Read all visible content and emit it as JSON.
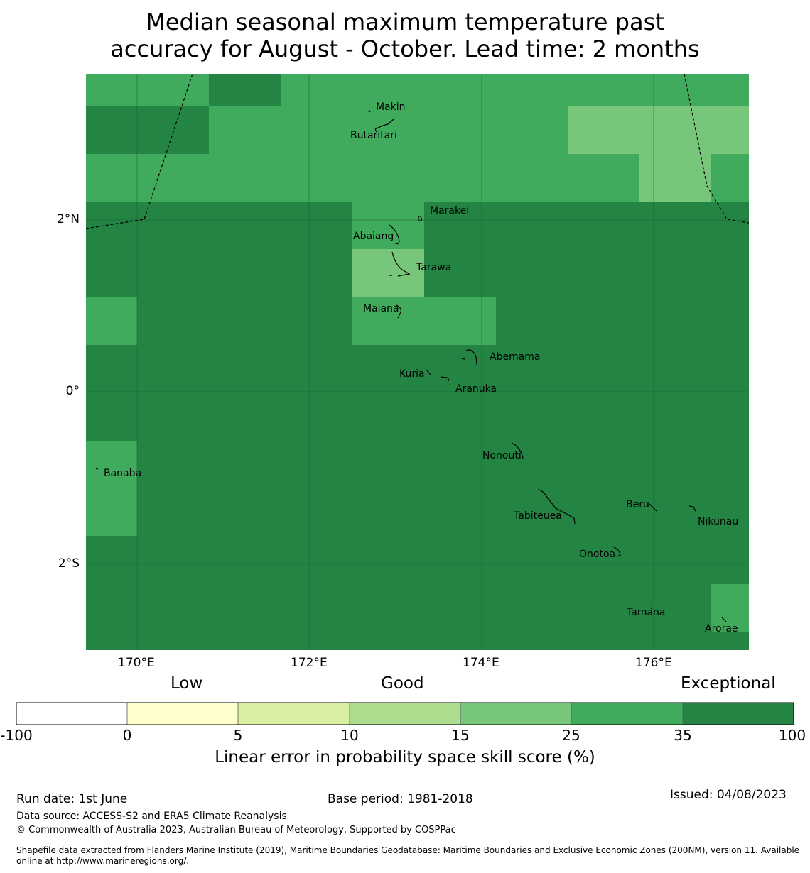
{
  "title": {
    "line1": "Median seasonal maximum temperature past",
    "line2": "accuracy for August - October. Lead time: 2 months"
  },
  "map": {
    "lat_ticks": [
      "2°N",
      "0°",
      "2°S"
    ],
    "lon_ticks": [
      "170°E",
      "172°E",
      "174°E",
      "176°E"
    ],
    "places": [
      "Makin",
      "Butaritari",
      "Marakei",
      "Abaiang",
      "Tarawa",
      "Maiana",
      "Abemama",
      "Kuria",
      "Aranuka",
      "Nonouti",
      "Banaba",
      "Beru",
      "Tabiteuea",
      "Nikunau",
      "Onotoa",
      "Tamana",
      "Arorae"
    ],
    "colors": {
      "exceptional_35_100": "#238443",
      "good_25_35": "#41ab5d",
      "good_15_25": "#78c679"
    },
    "skill_grid_rows": [
      "region north of 2.4°N: mostly 25-35 with 35-100 patches and 15-25 area near 176-177°E",
      "region south of 2.4°N: mostly 35-100 with 15-35 patches near Tarawa, Maiana and Banaba"
    ]
  },
  "colorbar": {
    "categories": [
      "Low",
      "Good",
      "Exceptional"
    ],
    "ticks": [
      "-100",
      "0",
      "5",
      "10",
      "15",
      "25",
      "35",
      "100"
    ],
    "bins": [
      {
        "from": "-100",
        "to": "0",
        "color": "#ffffff"
      },
      {
        "from": "0",
        "to": "5",
        "color": "#ffffcc"
      },
      {
        "from": "5",
        "to": "10",
        "color": "#d9f0a3"
      },
      {
        "from": "10",
        "to": "15",
        "color": "#addd8e"
      },
      {
        "from": "15",
        "to": "25",
        "color": "#78c679"
      },
      {
        "from": "25",
        "to": "35",
        "color": "#41ab5d"
      },
      {
        "from": "35",
        "to": "100",
        "color": "#238443"
      }
    ],
    "label": "Linear error in probability space skill score (%)"
  },
  "footer": {
    "run_date": "Run date: 1st June",
    "base_period": "Base period: 1981-2018",
    "issued": "Issued: 04/08/2023",
    "data_source": "Data source: ACCESS-S2 and ERA5 Climate Reanalysis",
    "copyright": "© Commonwealth of Australia 2023, Australian Bureau of Meteorology, Supported by COSPPac",
    "shapefile": "Shapefile data extracted from Flanders Marine Institute (2019), Maritime Boundaries Geodatabase: Maritime Boundaries and Exclusive Economic Zones (200NM), version 11. Available online at http://www.marineregions.org/."
  }
}
